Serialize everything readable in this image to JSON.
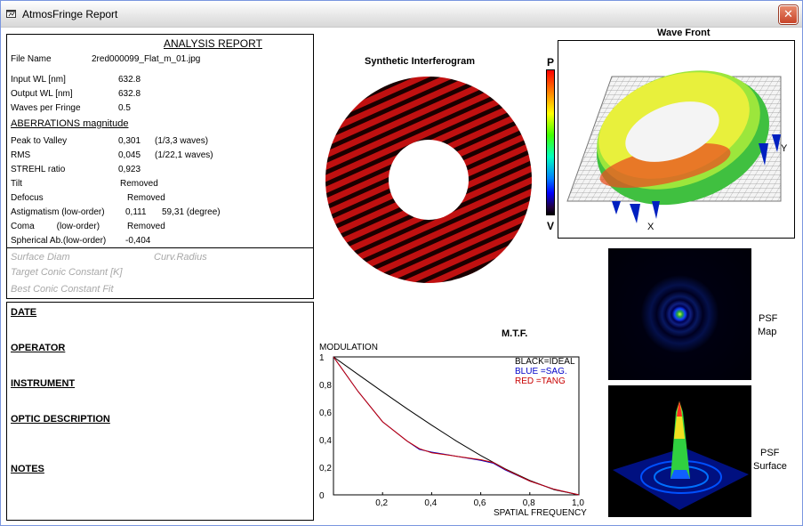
{
  "window": {
    "title": "AtmosFringe  Report",
    "close_glyph": "✕"
  },
  "report": {
    "heading": "ANALYSIS  REPORT",
    "file_name_label": "File Name",
    "file_name_value": "2red000099_Flat_m_01.jpg",
    "input_wl_label": "Input  WL [nm]",
    "input_wl_value": "632.8",
    "output_wl_label": "Output WL [nm]",
    "output_wl_value": "632.8",
    "waves_label": "Waves per Fringe",
    "waves_value": "0.5",
    "aberrations_heading": "ABERRATIONS magnitude",
    "ptv_label": "Peak to Valley",
    "ptv_value": "0,301",
    "ptv_waves": "(1/3,3 waves)",
    "rms_label": "RMS",
    "rms_value": "0,045",
    "rms_waves": "(1/22,1 waves)",
    "strehl_label": "STREHL ratio",
    "strehl_value": "0,923",
    "tilt_label": "Tilt",
    "tilt_value": "Removed",
    "defocus_label": "Defocus",
    "defocus_value": "Removed",
    "astig_label": "Astigmatism  (low-order)",
    "astig_value": "0,111",
    "astig_angle": "59,31  (degree)",
    "coma_label": "Coma         (low-order)",
    "coma_value": "Removed",
    "spherical_label": "Spherical Ab.(low-order)",
    "spherical_value": "-0,404",
    "surface_diam": "Surface Diam",
    "curv_radius": "Curv.Radius",
    "target_conic": "Target Conic Constant [K]",
    "best_conic": "Best Conic Constant Fit"
  },
  "notes": {
    "date": "DATE",
    "operator": "OPERATOR",
    "instrument": "INSTRUMENT",
    "optic_description": "OPTIC DESCRIPTION",
    "notes": "NOTES"
  },
  "interferogram": {
    "title": "Synthetic Interferogram",
    "fringe_color": "#c01010"
  },
  "colorbar": {
    "top_label": "P",
    "bottom_label": "V"
  },
  "wavefront": {
    "title": "Wave Front",
    "x_axis": "X",
    "y_axis": "Y"
  },
  "psf": {
    "map_label_1": "PSF",
    "map_label_2": "Map",
    "surface_label_1": "PSF",
    "surface_label_2": "Surface"
  },
  "chart_data": {
    "type": "line",
    "title": "M.T.F.",
    "ylabel": "MODULATION",
    "xlabel": "SPATIAL FREQUENCY",
    "xlim": [
      0,
      1.0
    ],
    "ylim": [
      0,
      1
    ],
    "x_ticks": [
      "0,2",
      "0,4",
      "0,6",
      "0,8",
      "1,0"
    ],
    "y_ticks": [
      "0",
      "0,2",
      "0,4",
      "0,6",
      "0,8",
      "1"
    ],
    "legend": [
      "BLACK=IDEAL",
      "BLUE  =SAG.",
      "RED    =TANG"
    ],
    "legend_colors": [
      "#000000",
      "#0000c8",
      "#c80000"
    ],
    "series": [
      {
        "name": "IDEAL",
        "color": "#000000",
        "x": [
          0,
          0.1,
          0.2,
          0.3,
          0.4,
          0.5,
          0.6,
          0.7,
          0.8,
          0.9,
          1.0
        ],
        "y": [
          1.0,
          0.873,
          0.747,
          0.624,
          0.505,
          0.391,
          0.285,
          0.188,
          0.104,
          0.037,
          0.0
        ]
      },
      {
        "name": "SAG.",
        "color": "#0000c8",
        "x": [
          0,
          0.1,
          0.2,
          0.3,
          0.35,
          0.4,
          0.5,
          0.6,
          0.65,
          0.7,
          0.8,
          0.9,
          1.0
        ],
        "y": [
          1.0,
          0.75,
          0.53,
          0.39,
          0.33,
          0.31,
          0.28,
          0.25,
          0.23,
          0.18,
          0.1,
          0.04,
          0.0
        ]
      },
      {
        "name": "TANG",
        "color": "#c80000",
        "x": [
          0,
          0.1,
          0.2,
          0.3,
          0.35,
          0.4,
          0.5,
          0.6,
          0.65,
          0.7,
          0.8,
          0.9,
          1.0
        ],
        "y": [
          1.0,
          0.75,
          0.53,
          0.39,
          0.335,
          0.305,
          0.28,
          0.255,
          0.235,
          0.185,
          0.1,
          0.04,
          0.0
        ]
      }
    ]
  }
}
